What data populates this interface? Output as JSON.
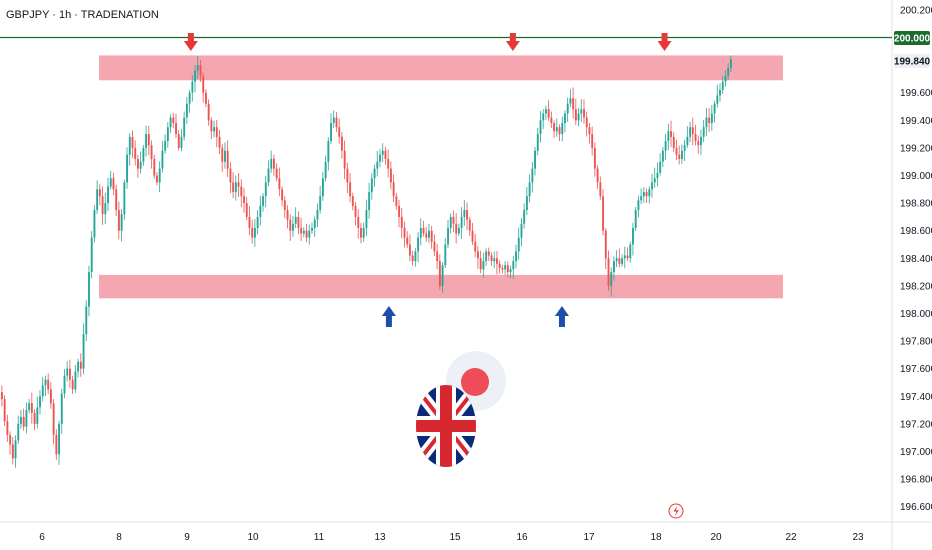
{
  "header": {
    "symbol_title": "GBPJPY · 1h · TRADENATION"
  },
  "price_labels": {
    "resistance_level": "200.000",
    "last_price": "199.840"
  },
  "colors": {
    "up_candle": "#26a69a",
    "down_candle": "#ef5350",
    "zone_fill": "#f4a7b0",
    "resistance_line": "#1e6b2e",
    "down_arrow": "#e53935",
    "up_arrow": "#1e4fa8",
    "axis_text": "#131722"
  },
  "icons": {
    "down_markers": "arrow-down-icon",
    "up_markers": "arrow-up-icon",
    "flag": "uk-flag-icon",
    "event": "lightning-icon"
  },
  "chart_data": {
    "type": "candlestick",
    "title": "GBPJPY · 1h · TRADENATION",
    "x_ticks": [
      "6",
      "8",
      "9",
      "10",
      "11",
      "13",
      "15",
      "16",
      "17",
      "18",
      "20",
      "22",
      "23"
    ],
    "y_ticks": [
      "196.600",
      "196.800",
      "197.000",
      "197.200",
      "197.400",
      "197.600",
      "197.800",
      "198.000",
      "198.200",
      "198.400",
      "198.600",
      "198.800",
      "199.000",
      "199.200",
      "199.400",
      "199.600",
      "199.840",
      "200.000",
      "200.200"
    ],
    "ylim": [
      196.5,
      200.27
    ],
    "resistance_line": 200.0,
    "last_price": 199.84,
    "zones": [
      {
        "name": "resistance-zone",
        "low": 199.69,
        "high": 199.87
      },
      {
        "name": "support-zone",
        "low": 198.11,
        "high": 198.28
      }
    ],
    "series": [
      {
        "date": "6",
        "points": [
          197.38,
          197.22,
          197.12,
          197.05,
          196.95,
          197.08,
          197.2,
          197.25,
          197.18,
          197.3,
          197.35,
          197.28,
          197.2,
          197.32,
          197.4,
          197.48,
          197.52,
          197.45,
          197.35,
          197.12,
          196.98,
          197.2,
          197.42,
          197.55,
          197.6,
          197.52,
          197.45,
          197.58,
          197.65,
          197.6
        ]
      },
      {
        "date": "8",
        "points": [
          197.85,
          198.05,
          198.3,
          198.55,
          198.75,
          198.9,
          198.85,
          198.72,
          198.8,
          198.92,
          198.98,
          198.9,
          198.75,
          198.6,
          198.72
        ]
      },
      {
        "date": "9",
        "points": [
          198.95,
          199.15,
          199.28,
          199.2,
          199.12,
          199.05,
          199.1,
          199.2,
          199.3,
          199.22,
          199.12,
          199.0,
          198.95,
          199.05,
          199.18,
          199.25,
          199.35,
          199.42,
          199.38,
          199.3,
          199.2,
          199.28,
          199.42,
          199.52,
          199.6,
          199.68,
          199.76,
          199.8,
          199.72,
          199.6
        ]
      },
      {
        "date": "10",
        "points": [
          199.52,
          199.4,
          199.32,
          199.35,
          199.28,
          199.2,
          199.1,
          199.18,
          199.05,
          198.95,
          198.88,
          198.95,
          198.92,
          198.85,
          198.8,
          198.7,
          198.62,
          198.55,
          198.62,
          198.7,
          198.78,
          198.85,
          198.95,
          199.05,
          199.12,
          199.05,
          198.98,
          198.9,
          198.82,
          198.75,
          198.68,
          198.6,
          198.65,
          198.7,
          198.62,
          198.58,
          198.6,
          198.55,
          198.6,
          198.62
        ]
      },
      {
        "date": "11",
        "points": [
          198.68,
          198.75,
          198.85,
          198.98,
          199.1,
          199.25,
          199.38,
          199.42,
          199.35,
          199.28,
          199.18,
          199.05,
          198.95,
          198.85,
          198.78,
          198.7,
          198.62,
          198.55,
          198.62,
          198.75,
          198.88,
          198.98,
          199.05,
          199.1,
          199.15,
          199.18,
          199.12,
          199.05,
          198.95,
          198.85,
          198.78,
          198.7,
          198.62,
          198.55,
          198.5,
          198.42,
          198.38
        ]
      },
      {
        "date": "13",
        "points": [
          198.45,
          198.55,
          198.62,
          198.58,
          198.55,
          198.6,
          198.52,
          198.45,
          198.38,
          198.2,
          198.35,
          198.5,
          198.62,
          198.7,
          198.65,
          198.58,
          198.62,
          198.7,
          198.75,
          198.68,
          198.6,
          198.52,
          198.45,
          198.4,
          198.32,
          198.38,
          198.45,
          198.42,
          198.38,
          198.4,
          198.36,
          198.33
        ]
      },
      {
        "date": "15",
        "points": [
          198.32,
          198.35,
          198.3,
          198.32,
          198.38,
          198.45,
          198.55,
          198.65,
          198.75,
          198.85,
          198.95,
          199.05,
          199.18,
          199.3,
          199.4,
          199.45,
          199.48,
          199.42,
          199.38,
          199.32,
          199.35,
          199.3,
          199.38,
          199.45,
          199.52,
          199.56,
          199.48,
          199.4,
          199.45,
          199.48,
          199.42,
          199.35,
          199.3
        ]
      },
      {
        "date": "16",
        "points": [
          199.2,
          199.05,
          198.95,
          198.85,
          198.6,
          198.4,
          198.2,
          198.3,
          198.38,
          198.4,
          198.36,
          198.4,
          198.42,
          198.4,
          198.5,
          198.62,
          198.75,
          198.82,
          198.85,
          198.88,
          198.85,
          198.9,
          198.95,
          198.98
        ]
      },
      {
        "date": "17",
        "points": [
          199.02,
          199.1,
          199.18,
          199.25,
          199.32,
          199.28,
          199.2,
          199.15,
          199.12,
          199.18,
          199.22,
          199.28,
          199.35,
          199.3,
          199.25,
          199.22,
          199.28,
          199.35,
          199.42,
          199.38,
          199.45,
          199.52,
          199.58,
          199.62,
          199.68,
          199.72,
          199.78,
          199.84
        ]
      }
    ],
    "candle_start_x": 1,
    "candle_spacing": 2.72
  },
  "markers": {
    "down_arrows": [
      {
        "pos": 0.214
      },
      {
        "pos": 0.575
      },
      {
        "pos": 0.745
      }
    ],
    "up_arrows": [
      {
        "pos": 0.436
      },
      {
        "pos": 0.63
      }
    ]
  }
}
